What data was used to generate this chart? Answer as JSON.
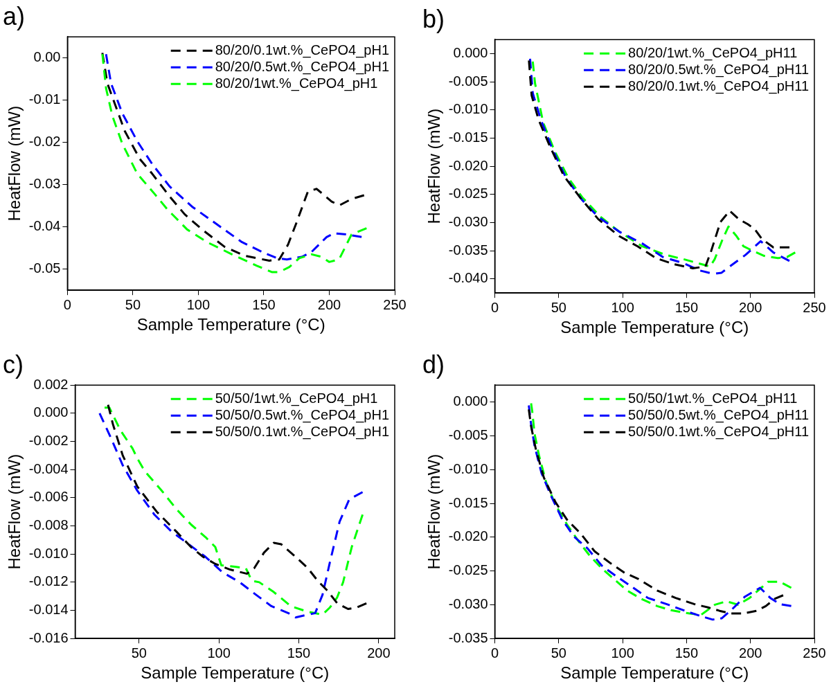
{
  "chart_data": [
    {
      "type": "line",
      "title": "a)",
      "xlabel": "Sample Temperature (°C)",
      "ylabel": "HeatFlow (mW)",
      "xlim": [
        0,
        250
      ],
      "xticks": [
        0,
        50,
        100,
        150,
        200,
        250
      ],
      "ylim": [
        -0.055,
        0.005
      ],
      "yticks": [
        {
          "value": 0,
          "label": "0.00"
        },
        {
          "value": -0.01,
          "label": "-0.01"
        },
        {
          "value": -0.02,
          "label": "-0.02"
        },
        {
          "value": -0.03,
          "label": "-0.03"
        },
        {
          "value": -0.04,
          "label": "-0.04"
        },
        {
          "value": -0.05,
          "label": "-0.05"
        }
      ],
      "grid": false,
      "legend": "top right",
      "line_style": "dashed",
      "series": [
        {
          "name": "80/20/0.1wt.%_CePO4_pH1",
          "color": "#000000",
          "x": [
            26.7,
            30.5,
            35.2,
            43.8,
            55.2,
            64.7,
            78.1,
            89.5,
            102.8,
            120,
            135.2,
            154.2,
            161.8,
            168.5,
            175.2,
            183.7,
            190.4,
            201.8,
            207.7,
            217,
            226.6
          ],
          "values": [
            0.0012,
            -0.006,
            -0.01,
            -0.0173,
            -0.0239,
            -0.0274,
            -0.0328,
            -0.037,
            -0.0406,
            -0.0447,
            -0.0468,
            -0.048,
            -0.0477,
            -0.0442,
            -0.0388,
            -0.0316,
            -0.031,
            -0.034,
            -0.0349,
            -0.0334,
            -0.0325
          ]
        },
        {
          "name": "80/20/0.5wt.%_CePO4_pH1",
          "color": "#0000ff",
          "x": [
            29.5,
            33.3,
            41.9,
            53.3,
            64.7,
            78,
            95.2,
            114.2,
            133.3,
            148.5,
            160,
            167.6,
            179,
            186.6,
            198,
            203.7,
            213.3,
            224.7
          ],
          "values": [
            0.0009,
            -0.006,
            -0.0131,
            -0.0197,
            -0.0251,
            -0.0304,
            -0.0352,
            -0.0394,
            -0.0436,
            -0.0459,
            -0.0474,
            -0.0477,
            -0.0471,
            -0.0459,
            -0.0424,
            -0.0415,
            -0.0418,
            -0.0424
          ]
        },
        {
          "name": "80/20/1wt.%_CePO4_pH1",
          "color": "#00ff00",
          "x": [
            26.7,
            29.5,
            34.3,
            41.9,
            53.3,
            66.6,
            76.2,
            91.4,
            106.6,
            125.7,
            144.7,
            156.1,
            161.8,
            169.5,
            177.1,
            186.6,
            194.2,
            199.9,
            207.5,
            217,
            228.5
          ],
          "values": [
            0.0009,
            -0.0072,
            -0.0137,
            -0.0203,
            -0.0274,
            -0.0322,
            -0.0358,
            -0.0406,
            -0.0436,
            -0.0465,
            -0.0492,
            -0.0507,
            -0.0507,
            -0.0495,
            -0.0474,
            -0.0465,
            -0.0471,
            -0.0483,
            -0.0477,
            -0.0418,
            -0.0403
          ]
        }
      ]
    },
    {
      "type": "line",
      "title": "b)",
      "xlabel": "Sample Temperature (°C)",
      "ylabel": "HeatFlow (mW)",
      "xlim": [
        0,
        250
      ],
      "xticks": [
        0,
        50,
        100,
        150,
        200,
        250
      ],
      "ylim": [
        -0.0425,
        0.0025
      ],
      "yticks": [
        {
          "value": 0,
          "label": "0.000"
        },
        {
          "value": -0.005,
          "label": "-0.005"
        },
        {
          "value": -0.01,
          "label": "-0.010"
        },
        {
          "value": -0.015,
          "label": "-0.015"
        },
        {
          "value": -0.02,
          "label": "-0.020"
        },
        {
          "value": -0.025,
          "label": "-0.025"
        },
        {
          "value": -0.03,
          "label": "-0.030"
        },
        {
          "value": -0.035,
          "label": "-0.035"
        },
        {
          "value": -0.04,
          "label": "-0.040"
        }
      ],
      "grid": false,
      "legend": "top right",
      "line_style": "dashed",
      "series": [
        {
          "name": "80/20/1wt.%_CePO4_pH11",
          "color": "#00ff00",
          "x": [
            29.7,
            31.5,
            37.8,
            46.8,
            57.6,
            68.4,
            82.9,
            97.3,
            115.3,
            133.3,
            147.7,
            162.1,
            168.4,
            172,
            178.3,
            182.8,
            189.1,
            194.5,
            201.7,
            210.7,
            221.5,
            228.7,
            235
          ],
          "values": [
            -0.0014,
            -0.0053,
            -0.0122,
            -0.0173,
            -0.0221,
            -0.0255,
            -0.029,
            -0.0316,
            -0.0342,
            -0.0357,
            -0.0365,
            -0.0374,
            -0.0378,
            -0.0365,
            -0.0329,
            -0.0307,
            -0.0324,
            -0.0342,
            -0.035,
            -0.0359,
            -0.0363,
            -0.0361,
            -0.0353
          ]
        },
        {
          "name": "80/20/0.5wt.%_CePO4_pH11",
          "color": "#0000ff",
          "x": [
            27.6,
            29.7,
            36,
            45,
            55.8,
            68.4,
            81,
            97.3,
            115.3,
            131.5,
            147.7,
            160.3,
            171.1,
            177.4,
            183.7,
            196.3,
            208,
            217.9,
            230.5
          ],
          "values": [
            -0.0009,
            -0.007,
            -0.0117,
            -0.0169,
            -0.0221,
            -0.026,
            -0.029,
            -0.0316,
            -0.0337,
            -0.0361,
            -0.0372,
            -0.0385,
            -0.0391,
            -0.0389,
            -0.0378,
            -0.0357,
            -0.0333,
            -0.0353,
            -0.0368
          ]
        },
        {
          "name": "80/20/0.1wt.%_CePO4_pH11",
          "color": "#000000",
          "x": [
            26.7,
            28.8,
            34.2,
            43.2,
            54,
            66.6,
            81,
            97.3,
            111.7,
            126.1,
            140.5,
            154.9,
            164.8,
            169.3,
            176.5,
            183.7,
            190.9,
            198.1,
            203.5,
            208.9,
            217.9,
            230.5
          ],
          "values": [
            -0.0012,
            -0.0074,
            -0.0117,
            -0.0165,
            -0.0217,
            -0.0255,
            -0.0294,
            -0.0324,
            -0.0342,
            -0.0363,
            -0.0374,
            -0.0381,
            -0.0378,
            -0.035,
            -0.0299,
            -0.0279,
            -0.0294,
            -0.0303,
            -0.0312,
            -0.0329,
            -0.0344,
            -0.0344
          ]
        }
      ]
    },
    {
      "type": "line",
      "title": "c)",
      "xlabel": "Sample Temperature (°C)",
      "ylabel": "HeatFlow (mW)",
      "xlim": [
        10,
        210
      ],
      "xticks": [
        50,
        100,
        150,
        200
      ],
      "ylim": [
        -0.016,
        0.002
      ],
      "yticks": [
        {
          "value": 0.002,
          "label": "0.002"
        },
        {
          "value": 0,
          "label": "0.000"
        },
        {
          "value": -0.002,
          "label": "-0.002"
        },
        {
          "value": -0.004,
          "label": "-0.004"
        },
        {
          "value": -0.006,
          "label": "-0.006"
        },
        {
          "value": -0.008,
          "label": "-0.008"
        },
        {
          "value": -0.01,
          "label": "-0.010"
        },
        {
          "value": -0.012,
          "label": "-0.012"
        },
        {
          "value": -0.014,
          "label": "-0.014"
        },
        {
          "value": -0.016,
          "label": "-0.016"
        }
      ],
      "grid": false,
      "legend": "top right",
      "line_style": "dashed",
      "series": [
        {
          "name": "50/50/1wt.%_CePO4_pH1",
          "color": "#00ff00",
          "x": [
            28.4,
            31.4,
            38.3,
            45.9,
            48.9,
            53.5,
            64.2,
            73.3,
            82.5,
            91.6,
            97.7,
            101.5,
            109.9,
            116.8,
            120.6,
            125.2,
            134.3,
            145,
            155.6,
            164.8,
            169.4,
            173.9,
            177.7,
            183.1,
            189.9
          ],
          "values": [
            0.0004,
            0.0004,
            -0.0012,
            -0.0025,
            -0.0032,
            -0.0041,
            -0.0055,
            -0.0068,
            -0.0079,
            -0.0088,
            -0.0095,
            -0.0108,
            -0.0109,
            -0.011,
            -0.0119,
            -0.012,
            -0.0127,
            -0.0137,
            -0.0141,
            -0.0143,
            -0.0138,
            -0.0131,
            -0.012,
            -0.0095,
            -0.0072
          ]
        },
        {
          "name": "50/50/0.5wt.%_CePO4_pH1",
          "color": "#0000ff",
          "x": [
            25.3,
            32.2,
            39.8,
            48.9,
            59.6,
            70.3,
            81,
            91.6,
            102.3,
            113,
            122.1,
            132.8,
            143.5,
            148,
            155.6,
            160.2,
            164.8,
            169.4,
            175.5,
            181.6,
            189.9
          ],
          "values": [
            0,
            -0.0017,
            -0.0037,
            -0.0055,
            -0.0072,
            -0.0084,
            -0.0093,
            -0.0102,
            -0.0113,
            -0.012,
            -0.0128,
            -0.0137,
            -0.0142,
            -0.0145,
            -0.0143,
            -0.0142,
            -0.0129,
            -0.0106,
            -0.0077,
            -0.0061,
            -0.0056
          ]
        },
        {
          "name": "50/50/0.1wt.%_CePO4_pH1",
          "color": "#000000",
          "x": [
            30.6,
            33.7,
            39.8,
            48.9,
            61.1,
            73.3,
            82.5,
            90.1,
            97.7,
            106.9,
            117.5,
            122.1,
            128.2,
            134.3,
            138.9,
            148,
            155.6,
            161.8,
            167.9,
            174,
            180.8,
            186.2,
            192.3
          ],
          "values": [
            0.0006,
            -0.0008,
            -0.003,
            -0.0052,
            -0.007,
            -0.0084,
            -0.0095,
            -0.0102,
            -0.0107,
            -0.0111,
            -0.0114,
            -0.011,
            -0.0099,
            -0.0092,
            -0.0093,
            -0.0102,
            -0.011,
            -0.0119,
            -0.0126,
            -0.0135,
            -0.0139,
            -0.0138,
            -0.0135
          ]
        }
      ]
    },
    {
      "type": "line",
      "title": "d)",
      "xlabel": "Sample Temperature (°C)",
      "ylabel": "HeatFlow (mW)",
      "xlim": [
        0,
        250
      ],
      "xticks": [
        0,
        50,
        100,
        150,
        200,
        250
      ],
      "ylim": [
        -0.035,
        0.0025
      ],
      "yticks": [
        {
          "value": 0,
          "label": "0.000"
        },
        {
          "value": -0.005,
          "label": "-0.005"
        },
        {
          "value": -0.01,
          "label": "-0.010"
        },
        {
          "value": -0.015,
          "label": "-0.015"
        },
        {
          "value": -0.02,
          "label": "-0.020"
        },
        {
          "value": -0.025,
          "label": "-0.025"
        },
        {
          "value": -0.03,
          "label": "-0.030"
        },
        {
          "value": -0.035,
          "label": "-0.035"
        }
      ],
      "grid": false,
      "legend": "top right",
      "line_style": "dashed",
      "series": [
        {
          "name": "50/50/1wt.%_CePO4_pH11",
          "color": "#00ff00",
          "x": [
            28.4,
            29.3,
            31.1,
            34.7,
            40.2,
            47.4,
            56.4,
            65.5,
            74.5,
            83.6,
            94.4,
            103.5,
            114.3,
            127,
            137.8,
            152.3,
            161.4,
            172.2,
            181.3,
            190.3,
            199.3,
            208.4,
            213.8,
            222.9,
            231.9
          ],
          "values": [
            -0.0002,
            -0.0014,
            -0.0047,
            -0.008,
            -0.0119,
            -0.0152,
            -0.0181,
            -0.0206,
            -0.0228,
            -0.0246,
            -0.0264,
            -0.0279,
            -0.0291,
            -0.0302,
            -0.0308,
            -0.0313,
            -0.0315,
            -0.03,
            -0.0295,
            -0.03,
            -0.029,
            -0.0275,
            -0.0266,
            -0.0266,
            -0.0275
          ]
        },
        {
          "name": "50/50/0.5wt.%_CePO4_pH11",
          "color": "#0000ff",
          "x": [
            26.6,
            28.4,
            31.1,
            36.5,
            43.8,
            52.8,
            61.9,
            72.7,
            83.6,
            94.4,
            105.3,
            119.8,
            134.2,
            148.7,
            161.4,
            170.4,
            177.6,
            184.9,
            195.7,
            207.5,
            215.6,
            222.9,
            231.9
          ],
          "values": [
            -0.0005,
            -0.0033,
            -0.0065,
            -0.0105,
            -0.0138,
            -0.0174,
            -0.0199,
            -0.0217,
            -0.0242,
            -0.0257,
            -0.0271,
            -0.029,
            -0.0299,
            -0.0309,
            -0.0317,
            -0.0322,
            -0.032,
            -0.0308,
            -0.0288,
            -0.0275,
            -0.029,
            -0.0299,
            -0.0302
          ]
        },
        {
          "name": "50/50/0.1wt.%_CePO4_pH11",
          "color": "#000000",
          "x": [
            26.6,
            28.4,
            32,
            38.4,
            47.4,
            56.4,
            67.3,
            78.1,
            90.8,
            101.7,
            112.5,
            127,
            141.5,
            155.9,
            166.8,
            175.8,
            184.9,
            194,
            204.8,
            212,
            219.2,
            225.6
          ],
          "values": [
            -0.0011,
            -0.0036,
            -0.0069,
            -0.0112,
            -0.0148,
            -0.0174,
            -0.0195,
            -0.0221,
            -0.0239,
            -0.0253,
            -0.0262,
            -0.0279,
            -0.029,
            -0.0299,
            -0.0304,
            -0.0309,
            -0.0313,
            -0.0313,
            -0.0309,
            -0.0302,
            -0.0291,
            -0.0286
          ]
        }
      ]
    }
  ]
}
